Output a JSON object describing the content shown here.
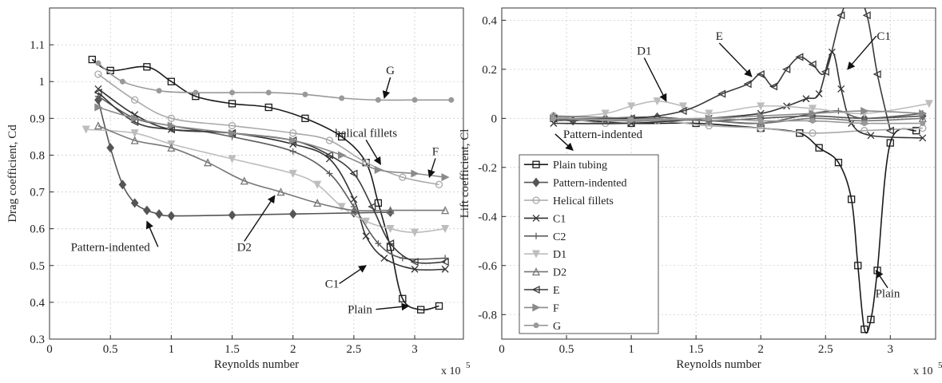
{
  "chart_data": [
    {
      "type": "line",
      "xlabel": "Reynolds number",
      "ylabel": "Drag coefficient, Cd",
      "xlim": [
        0,
        3.4
      ],
      "ylim": [
        0.3,
        1.2
      ],
      "x_ticks": [
        "0",
        "0.5",
        "1",
        "1.5",
        "2",
        "2.5",
        "3"
      ],
      "y_ticks": [
        "0.3",
        "0.4",
        "0.5",
        "0.6",
        "0.7",
        "0.8",
        "0.9",
        "1",
        "1.1"
      ],
      "x_multiplier": "x 10",
      "x_multiplier_exp": "5",
      "grid": true,
      "series": [
        {
          "name": "Plain tubing",
          "color": "#1a1a1a",
          "marker": "square",
          "x": [
            0.35,
            0.5,
            0.8,
            1.0,
            1.2,
            1.5,
            1.8,
            2.1,
            2.4,
            2.6,
            2.7,
            2.8,
            2.9,
            3.05,
            3.2
          ],
          "y": [
            1.06,
            1.03,
            1.04,
            1.0,
            0.96,
            0.94,
            0.93,
            0.9,
            0.85,
            0.78,
            0.67,
            0.55,
            0.41,
            0.38,
            0.39
          ]
        },
        {
          "name": "Pattern-indented",
          "color": "#555555",
          "marker": "diamond",
          "x": [
            0.4,
            0.5,
            0.6,
            0.7,
            0.8,
            0.9,
            1.0,
            1.5,
            2.0,
            2.5,
            2.8
          ],
          "y": [
            0.95,
            0.82,
            0.72,
            0.67,
            0.65,
            0.64,
            0.635,
            0.637,
            0.64,
            0.643,
            0.645
          ]
        },
        {
          "name": "Helical fillets",
          "color": "#a8a8a8",
          "marker": "circle",
          "x": [
            0.4,
            0.7,
            1.0,
            1.5,
            2.0,
            2.3,
            2.6,
            2.9,
            3.2
          ],
          "y": [
            1.02,
            0.95,
            0.9,
            0.88,
            0.86,
            0.84,
            0.78,
            0.74,
            0.72
          ]
        },
        {
          "name": "C1",
          "color": "#333333",
          "marker": "x",
          "x": [
            0.4,
            0.7,
            1.0,
            1.5,
            2.0,
            2.3,
            2.5,
            2.6,
            2.75,
            3.0,
            3.25
          ],
          "y": [
            0.98,
            0.91,
            0.87,
            0.86,
            0.83,
            0.79,
            0.68,
            0.58,
            0.52,
            0.49,
            0.49
          ]
        },
        {
          "name": "C2",
          "color": "#5c5c5c",
          "marker": "plus",
          "x": [
            0.4,
            0.7,
            1.0,
            1.5,
            2.0,
            2.3,
            2.5,
            2.7,
            2.9,
            3.25
          ],
          "y": [
            0.96,
            0.9,
            0.88,
            0.85,
            0.81,
            0.75,
            0.66,
            0.56,
            0.52,
            0.52
          ]
        },
        {
          "name": "D1",
          "color": "#bdbdbd",
          "marker": "triangle-down",
          "x": [
            0.3,
            0.7,
            1.0,
            1.5,
            2.0,
            2.2,
            2.4,
            2.6,
            2.8,
            3.0,
            3.25
          ],
          "y": [
            0.87,
            0.86,
            0.83,
            0.79,
            0.75,
            0.72,
            0.66,
            0.62,
            0.6,
            0.59,
            0.6
          ]
        },
        {
          "name": "D2",
          "color": "#777777",
          "marker": "triangle-up",
          "x": [
            0.4,
            0.7,
            1.0,
            1.3,
            1.6,
            1.9,
            2.2,
            2.5,
            2.8,
            3.25
          ],
          "y": [
            0.88,
            0.84,
            0.82,
            0.78,
            0.73,
            0.7,
            0.67,
            0.65,
            0.65,
            0.65
          ]
        },
        {
          "name": "E",
          "color": "#3a3a3a",
          "marker": "triangle-left",
          "x": [
            0.4,
            0.7,
            1.0,
            1.5,
            2.0,
            2.3,
            2.5,
            2.65,
            2.8,
            3.0,
            3.25
          ],
          "y": [
            0.97,
            0.89,
            0.87,
            0.86,
            0.84,
            0.8,
            0.75,
            0.66,
            0.56,
            0.51,
            0.51
          ]
        },
        {
          "name": "F",
          "color": "#8a8a8a",
          "marker": "triangle-right",
          "x": [
            0.4,
            0.7,
            1.0,
            1.5,
            2.0,
            2.4,
            2.7,
            3.0,
            3.25
          ],
          "y": [
            0.93,
            0.9,
            0.88,
            0.86,
            0.84,
            0.8,
            0.76,
            0.75,
            0.74
          ]
        },
        {
          "name": "G",
          "color": "#999999",
          "marker": "dot",
          "x": [
            0.4,
            0.6,
            0.9,
            1.2,
            1.5,
            1.8,
            2.1,
            2.4,
            2.7,
            3.0,
            3.3
          ],
          "y": [
            1.05,
            1.0,
            0.975,
            0.97,
            0.97,
            0.97,
            0.965,
            0.955,
            0.95,
            0.95,
            0.95
          ]
        }
      ],
      "annotations": [
        {
          "text": "G",
          "x": 2.8,
          "y": 1.02,
          "arrow_to": [
            2.75,
            0.955
          ]
        },
        {
          "text": "helical fillets",
          "x": 2.6,
          "y": 0.85,
          "arrow_to": [
            2.72,
            0.775
          ]
        },
        {
          "text": "F",
          "x": 3.17,
          "y": 0.8,
          "arrow_to": [
            3.12,
            0.74
          ]
        },
        {
          "text": "D2",
          "x": 1.6,
          "y": 0.54,
          "arrow_to": [
            1.85,
            0.69
          ]
        },
        {
          "text": "Pattern-indented",
          "x": 0.5,
          "y": 0.54,
          "arrow_to": [
            0.8,
            0.62
          ]
        },
        {
          "text": "C1",
          "x": 2.32,
          "y": 0.44,
          "arrow_to": [
            2.6,
            0.5
          ]
        },
        {
          "text": "Plain",
          "x": 2.55,
          "y": 0.37,
          "arrow_to": [
            2.95,
            0.39
          ]
        }
      ]
    },
    {
      "type": "line",
      "xlabel": "Reynolds number",
      "ylabel": "Lift coefficient, Cl",
      "xlim": [
        0,
        3.35
      ],
      "ylim": [
        -0.9,
        0.45
      ],
      "x_ticks": [
        "0",
        "0.5",
        "1",
        "1.5",
        "2",
        "2.5",
        "3"
      ],
      "y_ticks": [
        "-0.8",
        "-0.6",
        "-0.4",
        "-0.2",
        "0",
        "0.2",
        "0.4"
      ],
      "x_multiplier": "x 10",
      "x_multiplier_exp": "5",
      "grid": true,
      "legend_position": "bottom-left",
      "series": [
        {
          "name": "Plain tubing",
          "color": "#1a1a1a",
          "marker": "square",
          "x": [
            0.4,
            1.0,
            1.5,
            2.0,
            2.3,
            2.45,
            2.6,
            2.7,
            2.75,
            2.8,
            2.85,
            2.9,
            3.0,
            3.2
          ],
          "y": [
            0.0,
            -0.02,
            -0.02,
            -0.04,
            -0.06,
            -0.12,
            -0.18,
            -0.33,
            -0.6,
            -0.86,
            -0.82,
            -0.62,
            -0.1,
            -0.05
          ]
        },
        {
          "name": "Pattern-indented",
          "color": "#555555",
          "marker": "diamond",
          "x": [
            0.4,
            0.55,
            0.8,
            1.2,
            1.6,
            2.0,
            2.4,
            2.8,
            3.25
          ],
          "y": [
            0.0,
            -0.01,
            0.0,
            0.005,
            -0.01,
            0.0,
            0.01,
            0.0,
            0.01
          ]
        },
        {
          "name": "Helical fillets",
          "color": "#a8a8a8",
          "marker": "circle",
          "x": [
            0.4,
            0.8,
            1.2,
            1.6,
            2.0,
            2.4,
            2.8,
            3.25
          ],
          "y": [
            0.01,
            -0.02,
            -0.01,
            -0.03,
            -0.04,
            -0.06,
            -0.05,
            -0.04
          ]
        },
        {
          "name": "C1",
          "color": "#333333",
          "marker": "x",
          "x": [
            0.4,
            1.0,
            1.6,
            2.0,
            2.2,
            2.35,
            2.45,
            2.55,
            2.62,
            2.7,
            2.85,
            3.25
          ],
          "y": [
            -0.02,
            -0.02,
            0.0,
            0.02,
            0.05,
            0.08,
            0.1,
            0.27,
            0.12,
            -0.02,
            -0.07,
            -0.08
          ]
        },
        {
          "name": "C2",
          "color": "#5c5c5c",
          "marker": "plus",
          "x": [
            0.4,
            1.0,
            1.6,
            2.0,
            2.4,
            2.6,
            2.8,
            3.25
          ],
          "y": [
            -0.01,
            0.0,
            -0.01,
            -0.02,
            0.02,
            0.03,
            0.0,
            0.02
          ]
        },
        {
          "name": "D1",
          "color": "#bdbdbd",
          "marker": "triangle-down",
          "x": [
            0.4,
            0.8,
            1.0,
            1.2,
            1.4,
            1.6,
            2.0,
            2.4,
            2.8,
            3.3
          ],
          "y": [
            0.0,
            0.02,
            0.05,
            0.07,
            0.05,
            0.02,
            0.05,
            0.04,
            0.02,
            0.06
          ]
        },
        {
          "name": "D2",
          "color": "#777777",
          "marker": "triangle-up",
          "x": [
            0.4,
            1.0,
            1.6,
            2.0,
            2.4,
            2.8,
            3.25
          ],
          "y": [
            0.01,
            0.0,
            -0.01,
            -0.02,
            0.0,
            -0.01,
            0.0
          ]
        },
        {
          "name": "E",
          "color": "#3a3a3a",
          "marker": "triangle-left",
          "x": [
            0.4,
            1.0,
            1.4,
            1.7,
            1.9,
            2.0,
            2.1,
            2.2,
            2.3,
            2.4,
            2.5,
            2.62,
            2.72,
            2.82,
            2.9,
            3.0
          ],
          "y": [
            0.0,
            0.0,
            0.03,
            0.1,
            0.14,
            0.18,
            0.13,
            0.2,
            0.25,
            0.22,
            0.19,
            0.42,
            0.52,
            0.42,
            0.18,
            -0.05
          ]
        },
        {
          "name": "F",
          "color": "#8a8a8a",
          "marker": "triangle-right",
          "x": [
            0.4,
            1.0,
            1.6,
            2.0,
            2.4,
            2.8,
            3.25
          ],
          "y": [
            0.0,
            -0.01,
            0.0,
            0.01,
            0.02,
            0.03,
            0.02
          ]
        },
        {
          "name": "G",
          "color": "#999999",
          "marker": "dot",
          "x": [
            0.4,
            1.0,
            1.6,
            2.0,
            2.4,
            2.8,
            3.25
          ],
          "y": [
            0.0,
            -0.005,
            0.0,
            -0.01,
            -0.01,
            -0.02,
            -0.02
          ]
        }
      ],
      "annotations": [
        {
          "text": "D1",
          "x": 1.1,
          "y": 0.26,
          "arrow_to": [
            1.27,
            0.07
          ]
        },
        {
          "text": "E",
          "x": 1.68,
          "y": 0.32,
          "arrow_to": [
            1.93,
            0.17
          ]
        },
        {
          "text": "C1",
          "x": 2.95,
          "y": 0.32,
          "arrow_to": [
            2.67,
            0.2
          ]
        },
        {
          "text": "Pattern-indented",
          "x": 0.78,
          "y": -0.08,
          "arrow_to": [
            0.55,
            -0.13
          ]
        },
        {
          "text": "Plain",
          "x": 2.98,
          "y": -0.73,
          "arrow_to": [
            2.89,
            -0.62
          ]
        }
      ]
    }
  ]
}
